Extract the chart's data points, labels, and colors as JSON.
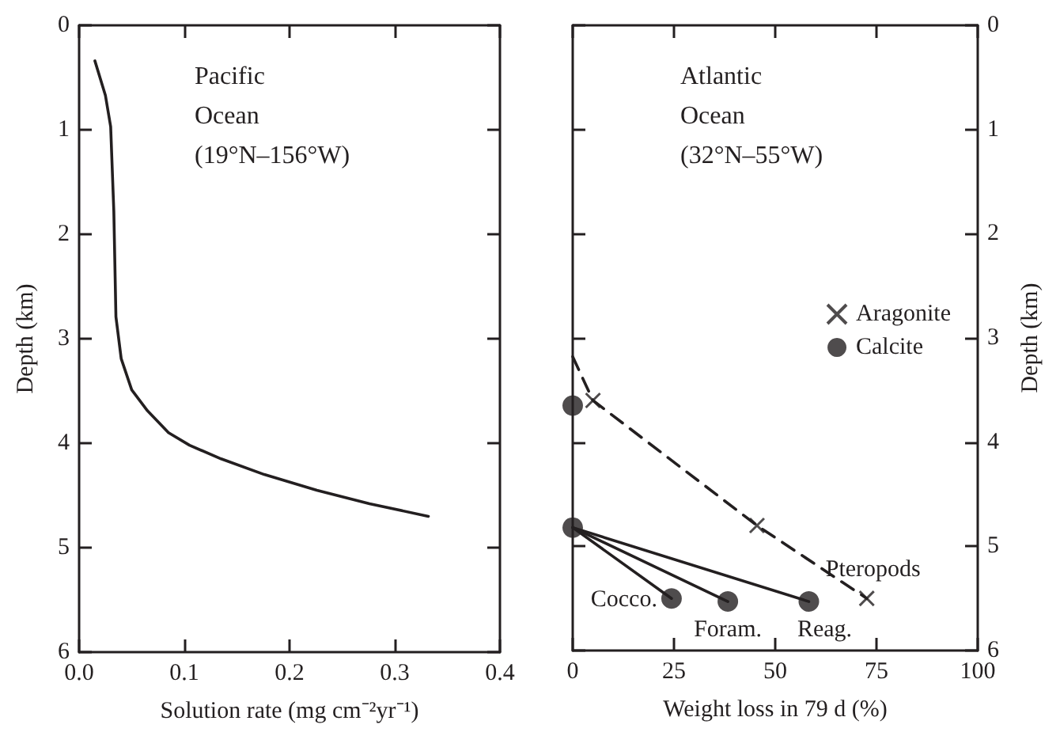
{
  "chart_data": [
    {
      "type": "line",
      "xlabel": "Solution rate (mg cm⁻²yr⁻¹)",
      "ylabel": "Depth (km)",
      "annotations": [
        "Pacific\nOcean\n(19°N–156°W)"
      ],
      "xlim": [
        0,
        0.4
      ],
      "xticks": [
        {
          "value": 0,
          "label": "0.0"
        },
        0.1,
        0.2,
        0.3,
        0.4
      ],
      "ylim": [
        6,
        0
      ],
      "yticks": [
        0,
        1,
        2,
        3,
        4,
        5,
        6
      ],
      "grid": false,
      "legend": false,
      "series": [
        {
          "color": "#231f20",
          "marker": "none",
          "line_style": "solid",
          "x": [
            0.015,
            0.025,
            0.03,
            0.033,
            0.035,
            0.04,
            0.05,
            0.065,
            0.085,
            0.105,
            0.135,
            0.176,
            0.226,
            0.276,
            0.332
          ],
          "values": [
            0.34,
            0.67,
            0.97,
            1.78,
            2.79,
            3.19,
            3.49,
            3.69,
            3.9,
            4.02,
            4.15,
            4.3,
            4.45,
            4.58,
            4.7
          ]
        }
      ]
    },
    {
      "type": "scatter",
      "xlabel": "Weight loss in 79 d (%)",
      "ylabel": "Depth (km)",
      "annotations": [
        "Atlantic\nOcean\n(32°N–55°W)",
        {
          "text": "Cocco.",
          "x": 24.4,
          "y": 5.5
        },
        {
          "text": "Foram.",
          "x": 38.3,
          "y": 5.53
        },
        {
          "text": "Reag.",
          "x": 58.3,
          "y": 5.53
        },
        {
          "text": "Pteropods",
          "x": 72.6,
          "y": 5.5
        }
      ],
      "xlim": [
        0,
        100
      ],
      "xticks": [
        0,
        25,
        50,
        75,
        100
      ],
      "ylim": [
        6,
        0
      ],
      "yticks": [
        0,
        1,
        2,
        3,
        4,
        5,
        6
      ],
      "grid": false,
      "legend": "right",
      "series": [
        {
          "type": "line",
          "color": "#231f20",
          "marker": "none",
          "line_style": "dashed",
          "x": [
            0,
            5,
            45.5,
            72.6
          ],
          "values": [
            3.18,
            3.6,
            4.8,
            5.5
          ]
        },
        {
          "type": "line",
          "color": "#231f20",
          "marker": "none",
          "line_style": "solid",
          "x": [
            0,
            24.4
          ],
          "values": [
            4.82,
            5.5
          ]
        },
        {
          "type": "line",
          "color": "#231f20",
          "marker": "none",
          "line_style": "solid",
          "x": [
            0,
            38.3
          ],
          "values": [
            4.82,
            5.53
          ]
        },
        {
          "type": "line",
          "color": "#231f20",
          "marker": "none",
          "line_style": "solid",
          "x": [
            0,
            58.3
          ],
          "values": [
            4.82,
            5.53
          ]
        },
        {
          "name": "Aragonite",
          "color": "#231f20",
          "marker": "cross",
          "x": [
            5,
            45.5,
            72.6
          ],
          "values": [
            3.6,
            4.8,
            5.5
          ]
        },
        {
          "name": "Calcite",
          "color": "#231f20",
          "marker": "circle",
          "x": [
            0,
            0,
            24.4,
            38.3,
            58.3
          ],
          "values": [
            3.65,
            4.82,
            5.5,
            5.53,
            5.53
          ]
        }
      ]
    }
  ]
}
